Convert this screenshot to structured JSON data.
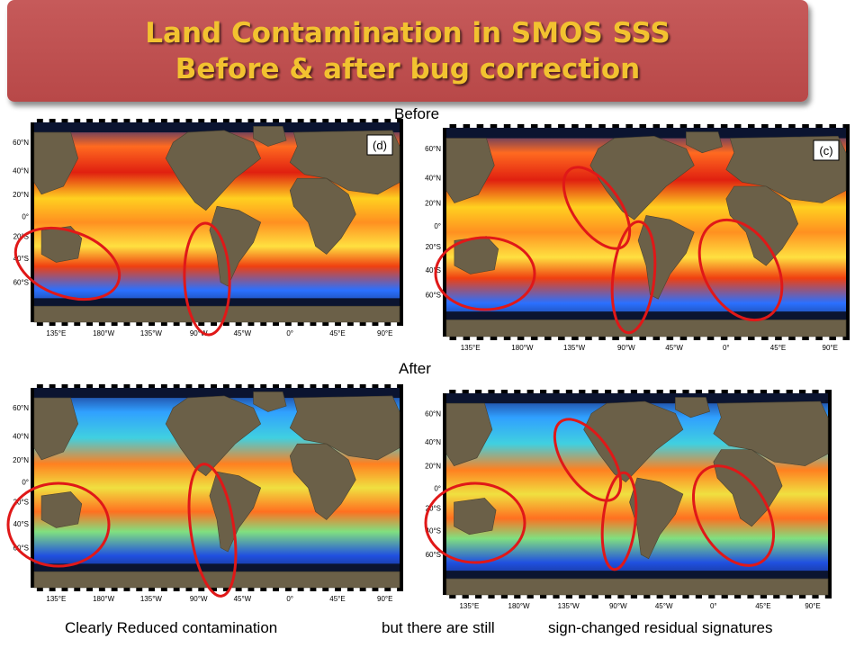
{
  "title": {
    "line1": "Land Contamination in SMOS SSS",
    "line2": "Before & after bug correction"
  },
  "labels": {
    "before": "Before",
    "after": "After"
  },
  "panel_tags": {
    "d": "(d)",
    "c": "(c)"
  },
  "lat_ticks": [
    "60°N",
    "40°N",
    "20°N",
    "0°",
    "20°S",
    "40°S",
    "60°S"
  ],
  "lon_ticks": [
    "135°E",
    "180°W",
    "135°W",
    "90°W",
    "45°W",
    "0°",
    "45°E",
    "90°E"
  ],
  "caption": {
    "part1": "Clearly Reduced contamination",
    "part2": "but there are still",
    "part3": "sign-changed residual signatures"
  },
  "colors": {
    "banner": "#bf5050",
    "title_text": "#f2c230",
    "ellipse": "#e01818",
    "ocean_high": "#d81a10",
    "ocean_low": "#2050e0"
  }
}
